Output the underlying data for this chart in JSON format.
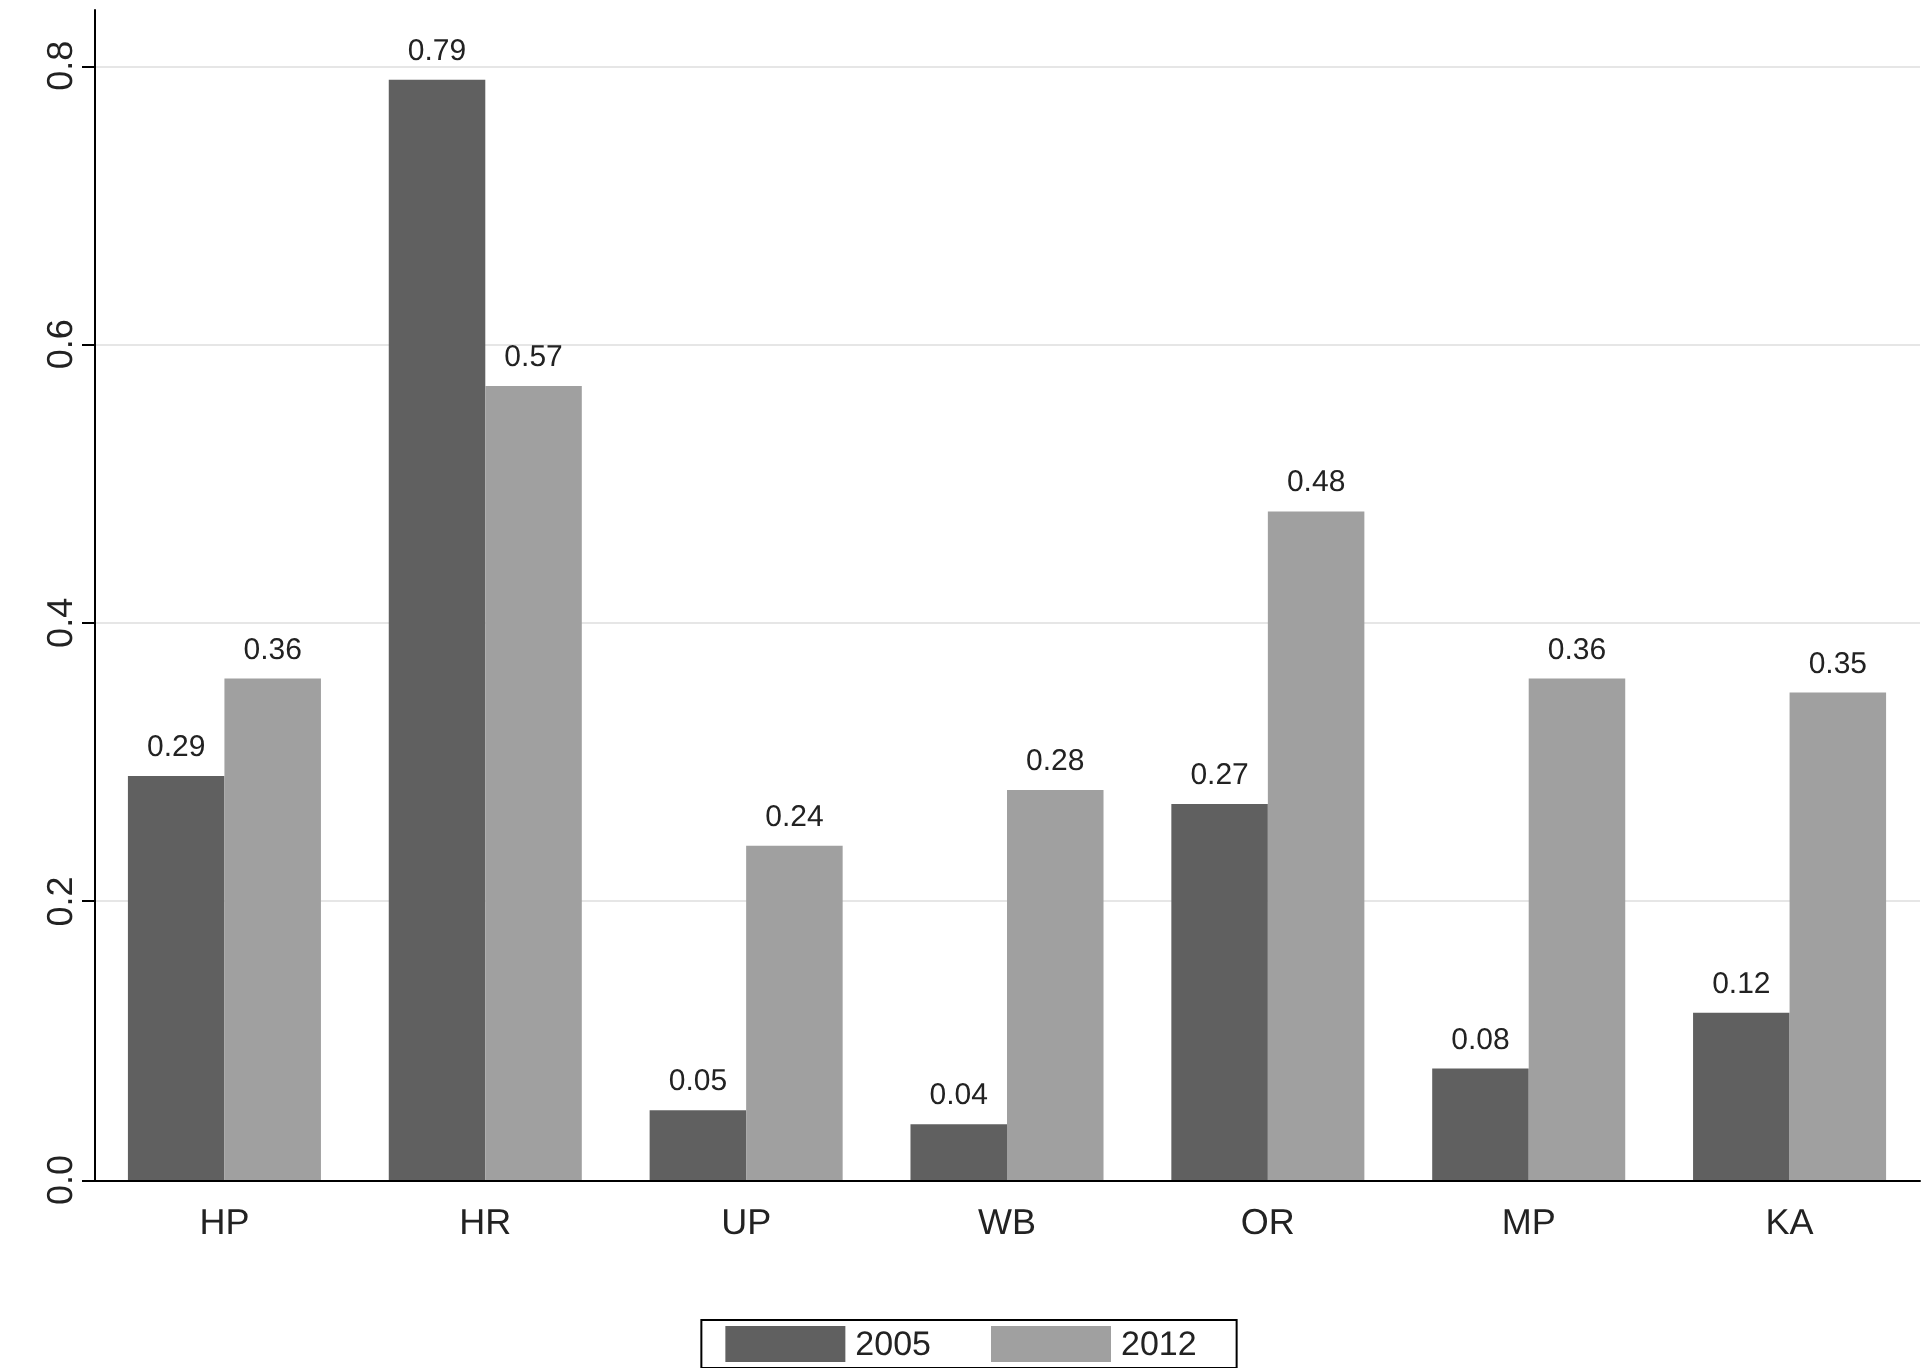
{
  "chart_data": {
    "type": "bar",
    "categories": [
      "HP",
      "HR",
      "UP",
      "WB",
      "OR",
      "MP",
      "KA"
    ],
    "series": [
      {
        "name": "2005",
        "color": "#606060",
        "values": [
          0.29,
          0.79,
          0.05,
          0.04,
          0.27,
          0.08,
          0.12
        ]
      },
      {
        "name": "2012",
        "color": "#a0a0a0",
        "values": [
          0.36,
          0.57,
          0.24,
          0.28,
          0.48,
          0.36,
          0.35
        ]
      }
    ],
    "ylim": [
      0,
      0.84
    ],
    "yticks": [
      {
        "value": 0,
        "label": "0.0"
      },
      {
        "value": 0.2,
        "label": "0.2"
      },
      {
        "value": 0.4,
        "label": "0.4"
      },
      {
        "value": 0.6,
        "label": "0.6"
      },
      {
        "value": 0.8,
        "label": "0.8"
      }
    ],
    "grid": "y",
    "legend": "bottom",
    "data_labels": true
  }
}
